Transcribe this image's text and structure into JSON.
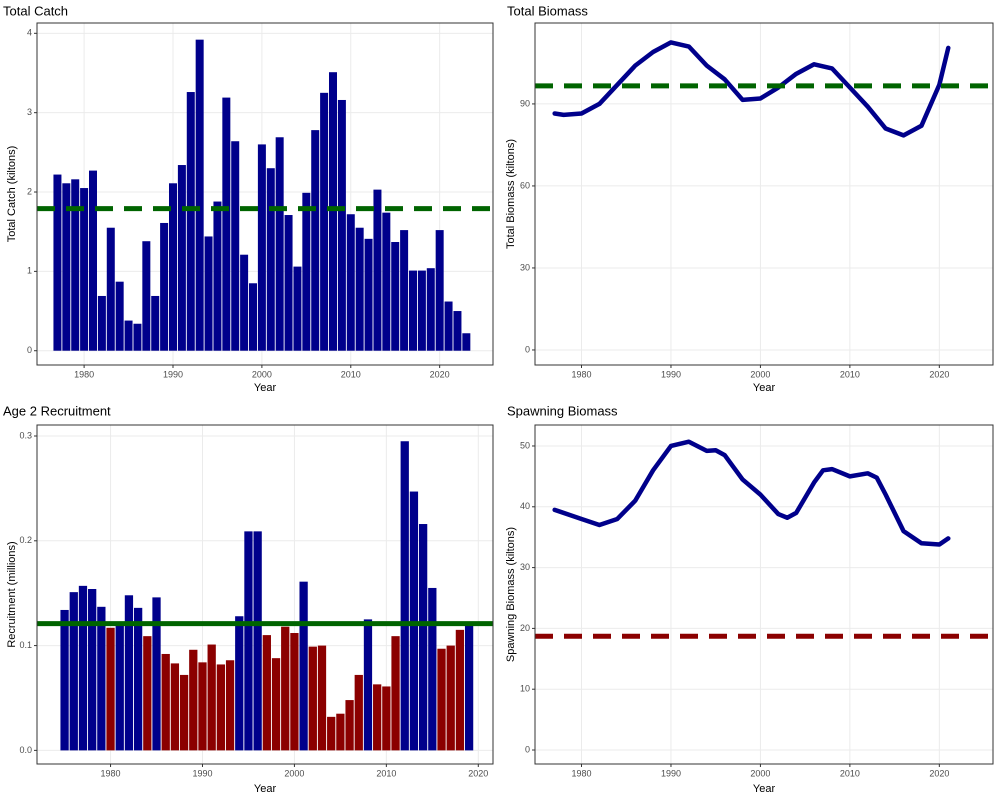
{
  "chart_data": [
    {
      "type": "bar",
      "title": "Total Catch",
      "xlabel": "Year",
      "ylabel": "Total Catch (kiltons)",
      "x": [
        1977,
        1978,
        1979,
        1980,
        1981,
        1982,
        1983,
        1984,
        1985,
        1986,
        1987,
        1988,
        1989,
        1990,
        1991,
        1992,
        1993,
        1994,
        1995,
        1996,
        1997,
        1998,
        1999,
        2000,
        2001,
        2002,
        2003,
        2004,
        2005,
        2006,
        2007,
        2008,
        2009,
        2010,
        2011,
        2012,
        2013,
        2014,
        2015,
        2016,
        2017,
        2018,
        2019,
        2020,
        2021,
        2022,
        2023
      ],
      "values": [
        2.22,
        2.11,
        2.16,
        2.05,
        2.27,
        0.69,
        1.55,
        0.87,
        0.38,
        0.34,
        1.38,
        0.69,
        1.61,
        2.11,
        2.34,
        3.26,
        3.92,
        1.44,
        1.88,
        3.19,
        2.64,
        1.21,
        0.85,
        2.6,
        2.3,
        2.69,
        1.71,
        1.06,
        1.99,
        2.78,
        3.25,
        3.51,
        3.16,
        1.72,
        1.55,
        1.41,
        2.03,
        1.74,
        1.37,
        1.52,
        1.01,
        1.01,
        1.04,
        1.52,
        0.62,
        0.5,
        0.22
      ],
      "color": "#00008b",
      "hline": {
        "value": 1.79,
        "color": "#006400",
        "dashed": true
      },
      "xlim": [
        1974.7,
        2026
      ],
      "xticks": [
        1980,
        1990,
        2000,
        2010,
        2020
      ],
      "ylim": [
        -0.18,
        4.13
      ],
      "yticks": [
        0,
        1,
        2,
        3,
        4
      ],
      "grid": true
    },
    {
      "type": "line",
      "title": "Total Biomass",
      "xlabel": "Year",
      "ylabel": "Total Biomass (kiltons)",
      "x": [
        1977,
        1978,
        1980,
        1982,
        1984,
        1986,
        1988,
        1990,
        1992,
        1994,
        1996,
        1998,
        2000,
        2002,
        2004,
        2006,
        2008,
        2010,
        2012,
        2014,
        2016,
        2018,
        2020,
        2021
      ],
      "values": [
        86.5,
        86,
        86.5,
        90,
        97,
        104,
        109,
        112.5,
        111,
        104,
        99,
        91.5,
        92,
        96,
        101,
        104.5,
        103,
        96,
        89,
        81,
        78.5,
        82,
        97,
        110.5
      ],
      "color": "#00008b",
      "hline": {
        "value": 96.6,
        "color": "#006400",
        "dashed": true
      },
      "xlim": [
        1974.8,
        2026
      ],
      "xticks": [
        1980,
        1990,
        2000,
        2010,
        2020
      ],
      "ylim": [
        -5.5,
        119.6
      ],
      "yticks": [
        0,
        30,
        60,
        90
      ],
      "grid": true
    },
    {
      "type": "bar",
      "title": "Age 2 Recruitment",
      "xlabel": "Year",
      "ylabel": "Recruitment (millions)",
      "x": [
        1975,
        1976,
        1977,
        1978,
        1979,
        1980,
        1981,
        1982,
        1983,
        1984,
        1985,
        1986,
        1987,
        1988,
        1989,
        1990,
        1991,
        1992,
        1993,
        1994,
        1995,
        1996,
        1997,
        1998,
        1999,
        2000,
        2001,
        2002,
        2003,
        2004,
        2005,
        2006,
        2007,
        2008,
        2009,
        2010,
        2011,
        2012,
        2013,
        2014,
        2015,
        2016,
        2017,
        2018,
        2019
      ],
      "values": [
        0.134,
        0.151,
        0.157,
        0.154,
        0.137,
        0.117,
        0.121,
        0.148,
        0.136,
        0.109,
        0.146,
        0.092,
        0.083,
        0.072,
        0.096,
        0.084,
        0.101,
        0.082,
        0.086,
        0.128,
        0.209,
        0.209,
        0.11,
        0.088,
        0.118,
        0.112,
        0.161,
        0.099,
        0.1,
        0.032,
        0.035,
        0.048,
        0.072,
        0.125,
        0.063,
        0.061,
        0.109,
        0.295,
        0.247,
        0.216,
        0.155,
        0.097,
        0.1,
        0.115,
        0.119
      ],
      "colors": [
        "#00008b",
        "#00008b",
        "#00008b",
        "#00008b",
        "#00008b",
        "#8b0000",
        "#00008b",
        "#00008b",
        "#00008b",
        "#8b0000",
        "#00008b",
        "#8b0000",
        "#8b0000",
        "#8b0000",
        "#8b0000",
        "#8b0000",
        "#8b0000",
        "#8b0000",
        "#8b0000",
        "#00008b",
        "#00008b",
        "#00008b",
        "#8b0000",
        "#8b0000",
        "#8b0000",
        "#8b0000",
        "#00008b",
        "#8b0000",
        "#8b0000",
        "#8b0000",
        "#8b0000",
        "#8b0000",
        "#8b0000",
        "#00008b",
        "#8b0000",
        "#8b0000",
        "#8b0000",
        "#00008b",
        "#00008b",
        "#00008b",
        "#00008b",
        "#8b0000",
        "#8b0000",
        "#8b0000",
        "#00008b"
      ],
      "hline": {
        "value": 0.121,
        "color": "#006400",
        "dashed": false
      },
      "xlim": [
        1972,
        2021.6
      ],
      "xticks": [
        1980,
        1990,
        2000,
        2010,
        2020
      ],
      "ylim": [
        -0.013,
        0.3105
      ],
      "yticks": [
        {
          "value": 0,
          "label": "0.0"
        },
        0.1,
        0.2,
        0.3
      ],
      "grid": true
    },
    {
      "type": "line",
      "title": "Spawning Biomass",
      "xlabel": "Year",
      "ylabel": "Spawning Biomass (kiltons)",
      "x": [
        1977,
        1980,
        1982,
        1984,
        1986,
        1988,
        1990,
        1992,
        1994,
        1995,
        1996,
        1998,
        2000,
        2002,
        2003,
        2004,
        2006,
        2007,
        2008,
        2010,
        2012,
        2013,
        2014,
        2016,
        2018,
        2020,
        2021
      ],
      "values": [
        39.5,
        38,
        37,
        38,
        41,
        46,
        50,
        50.7,
        49.2,
        49.3,
        48.5,
        44.5,
        42,
        38.8,
        38.2,
        39,
        44,
        46,
        46.2,
        45,
        45.5,
        44.8,
        42,
        36,
        34,
        33.8,
        34.8
      ],
      "color": "#00008b",
      "hline": {
        "value": 18.7,
        "color": "#8b0000",
        "dashed": true
      },
      "xlim": [
        1974.8,
        2026
      ],
      "xticks": [
        1980,
        1990,
        2000,
        2010,
        2020
      ],
      "ylim": [
        -2.3,
        53.45
      ],
      "yticks": [
        0,
        10,
        20,
        30,
        40,
        50
      ],
      "grid": true
    }
  ]
}
